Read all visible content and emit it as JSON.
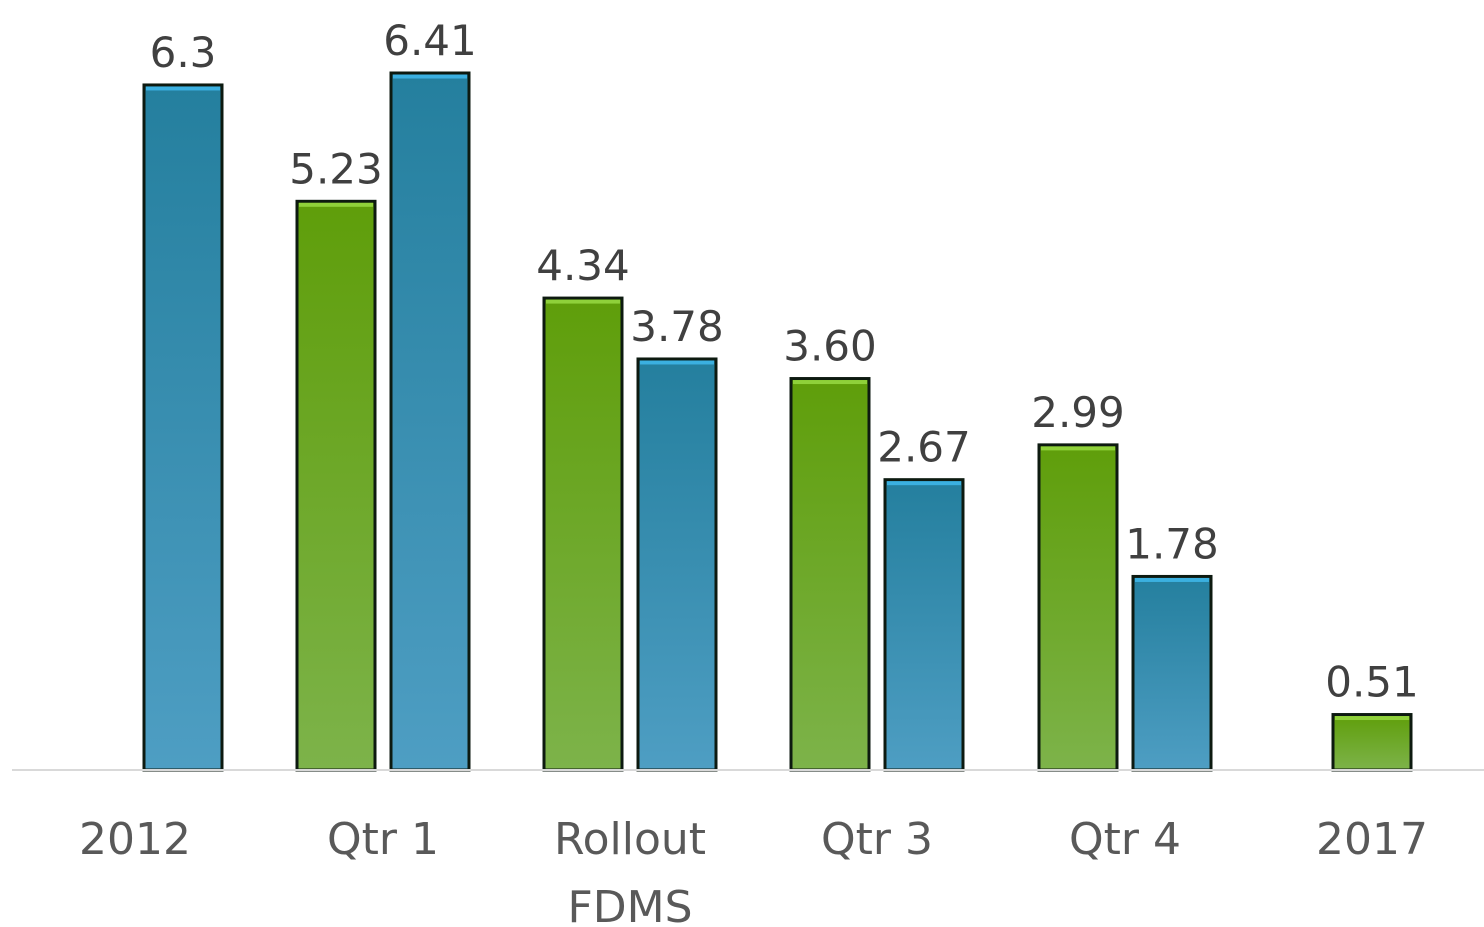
{
  "chart_data": {
    "type": "bar",
    "categories": [
      [
        "2012"
      ],
      [
        "Qtr 1"
      ],
      [
        "Rollout",
        "FDMS"
      ],
      [
        "Qtr 3"
      ],
      [
        "Qtr 4"
      ],
      [
        "2017"
      ]
    ],
    "series": [
      {
        "color": "#63a112",
        "values": [
          null,
          5.23,
          4.34,
          3.6,
          2.99,
          0.51
        ],
        "labels": [
          "",
          "5.23",
          "4.34",
          "3.60",
          "2.99",
          "0.51"
        ]
      },
      {
        "color": "#2b84a8",
        "values": [
          6.3,
          6.41,
          3.78,
          2.67,
          1.78,
          null
        ],
        "labels": [
          "6.3",
          "6.41",
          "3.78",
          "2.67",
          "1.78",
          ""
        ]
      }
    ],
    "ylim": [
      0,
      6.41
    ],
    "grid": false,
    "legend": "none"
  }
}
